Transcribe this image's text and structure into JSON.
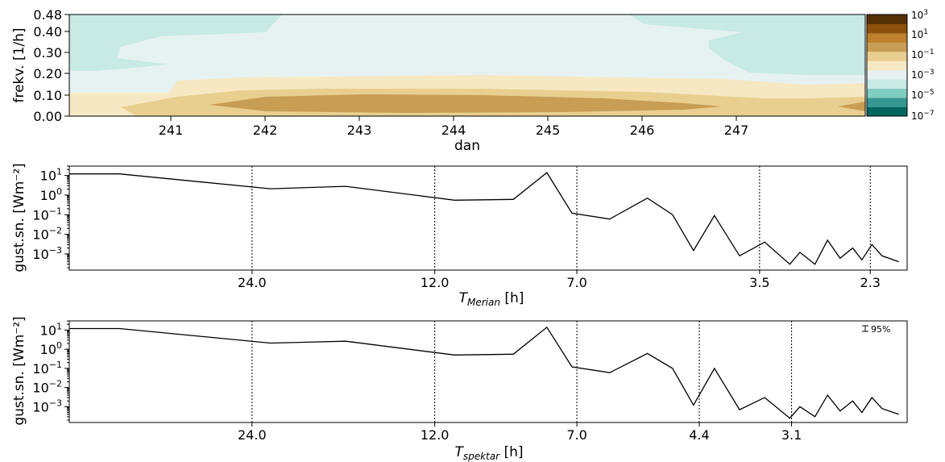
{
  "chart_data": [
    {
      "type": "heatmap",
      "xlabel": "dan",
      "ylabel": "frekv. [1/h]",
      "xlim": [
        240.0,
        248.0
      ],
      "ylim": [
        0.0,
        0.48
      ],
      "x_ticks": [
        "241",
        "242",
        "243",
        "244",
        "245",
        "246",
        "247"
      ],
      "y_ticks": [
        "0.00",
        "0.10",
        "0.20",
        "0.30",
        "0.40",
        "0.48"
      ],
      "colorbar": {
        "scale": "log",
        "levels": [
          -7,
          -6,
          -5,
          -4,
          -3,
          -2,
          -1,
          0,
          1,
          2,
          3
        ],
        "colors": [
          "#01665e",
          "#35978f",
          "#80cdc1",
          "#c7eae5",
          "#e6f2f1",
          "#f6e8c3",
          "#e9cf8f",
          "#c89d54",
          "#bf812d",
          "#8c510a",
          "#543005"
        ],
        "tick_labels": [
          {
            "base": "10",
            "exp": "3"
          },
          {
            "base": "10",
            "exp": "1"
          },
          {
            "base": "10",
            "exp": "−1"
          },
          {
            "base": "10",
            "exp": "−3"
          },
          {
            "base": "10",
            "exp": "−5"
          },
          {
            "base": "10",
            "exp": "−7"
          }
        ]
      },
      "region_levels": [
        {
          "level": -4,
          "description": "upper band (high frequencies, edges)"
        },
        {
          "level": -3,
          "description": "central/upper middle band"
        },
        {
          "level": -2,
          "description": "band around 0.10–0.20"
        },
        {
          "level": -1,
          "description": "band around 0.05–0.12"
        },
        {
          "level": 0,
          "description": "core around 0.01–0.09"
        }
      ]
    },
    {
      "type": "line",
      "xlabel": "T_Merian [h]",
      "xlabel_main": "T",
      "xlabel_sub": "Merian",
      "xlabel_unit": " [h]",
      "ylabel": "gust.sn. [Wm⁻²]",
      "yscale": "log",
      "ylim": [
        0.00015,
        30
      ],
      "y_ticks": [
        {
          "base": "10",
          "exp": "1"
        },
        {
          "base": "10",
          "exp": "0"
        },
        {
          "base": "10",
          "exp": "−1"
        },
        {
          "base": "10",
          "exp": "−2"
        },
        {
          "base": "10",
          "exp": "−3"
        }
      ],
      "vlines": [
        {
          "value": 24.0,
          "label": "24.0"
        },
        {
          "value": 12.0,
          "label": "12.0"
        },
        {
          "value": 7.0,
          "label": "7.0"
        },
        {
          "value": 3.5,
          "label": "3.5"
        },
        {
          "value": 2.3,
          "label": "2.3"
        }
      ],
      "x_frac": [
        0.0,
        0.06,
        0.24,
        0.33,
        0.46,
        0.53,
        0.57,
        0.6,
        0.645,
        0.69,
        0.72,
        0.745,
        0.77,
        0.8,
        0.83,
        0.86,
        0.872,
        0.89,
        0.905,
        0.92,
        0.935,
        0.946,
        0.958,
        0.97,
        0.99
      ],
      "y_values": [
        12,
        12,
        2.1,
        2.8,
        0.55,
        0.6,
        14,
        0.12,
        0.06,
        0.7,
        0.1,
        0.0015,
        0.09,
        0.0008,
        0.004,
        0.0003,
        0.0012,
        0.0003,
        0.005,
        0.0006,
        0.002,
        0.0005,
        0.003,
        0.0008,
        0.0004
      ],
      "x_extent_h": 48
    },
    {
      "type": "line",
      "xlabel": "T_spektar [h]",
      "xlabel_main": "T",
      "xlabel_sub": "spektar",
      "xlabel_unit": " [h]",
      "ylabel": "gust.sn. [Wm⁻²]",
      "yscale": "log",
      "ylim": [
        0.00015,
        30
      ],
      "y_ticks": [
        {
          "base": "10",
          "exp": "1"
        },
        {
          "base": "10",
          "exp": "0"
        },
        {
          "base": "10",
          "exp": "−1"
        },
        {
          "base": "10",
          "exp": "−2"
        },
        {
          "base": "10",
          "exp": "−3"
        }
      ],
      "vlines": [
        {
          "value": 24.0,
          "label": "24.0"
        },
        {
          "value": 12.0,
          "label": "12.0"
        },
        {
          "value": 7.0,
          "label": "7.0"
        },
        {
          "value": 4.4,
          "label": "4.4"
        },
        {
          "value": 3.1,
          "label": "3.1"
        }
      ],
      "annotation": "95%",
      "x_frac": [
        0.0,
        0.06,
        0.24,
        0.33,
        0.46,
        0.53,
        0.57,
        0.6,
        0.645,
        0.69,
        0.72,
        0.745,
        0.77,
        0.8,
        0.83,
        0.86,
        0.872,
        0.89,
        0.905,
        0.92,
        0.935,
        0.946,
        0.958,
        0.97,
        0.99
      ],
      "y_values": [
        12,
        12,
        2.1,
        2.6,
        0.5,
        0.55,
        14,
        0.12,
        0.06,
        0.6,
        0.1,
        0.0012,
        0.1,
        0.0007,
        0.003,
        0.00025,
        0.001,
        0.0003,
        0.004,
        0.0006,
        0.002,
        0.0005,
        0.003,
        0.0008,
        0.0004
      ],
      "x_extent_h": 48
    }
  ]
}
